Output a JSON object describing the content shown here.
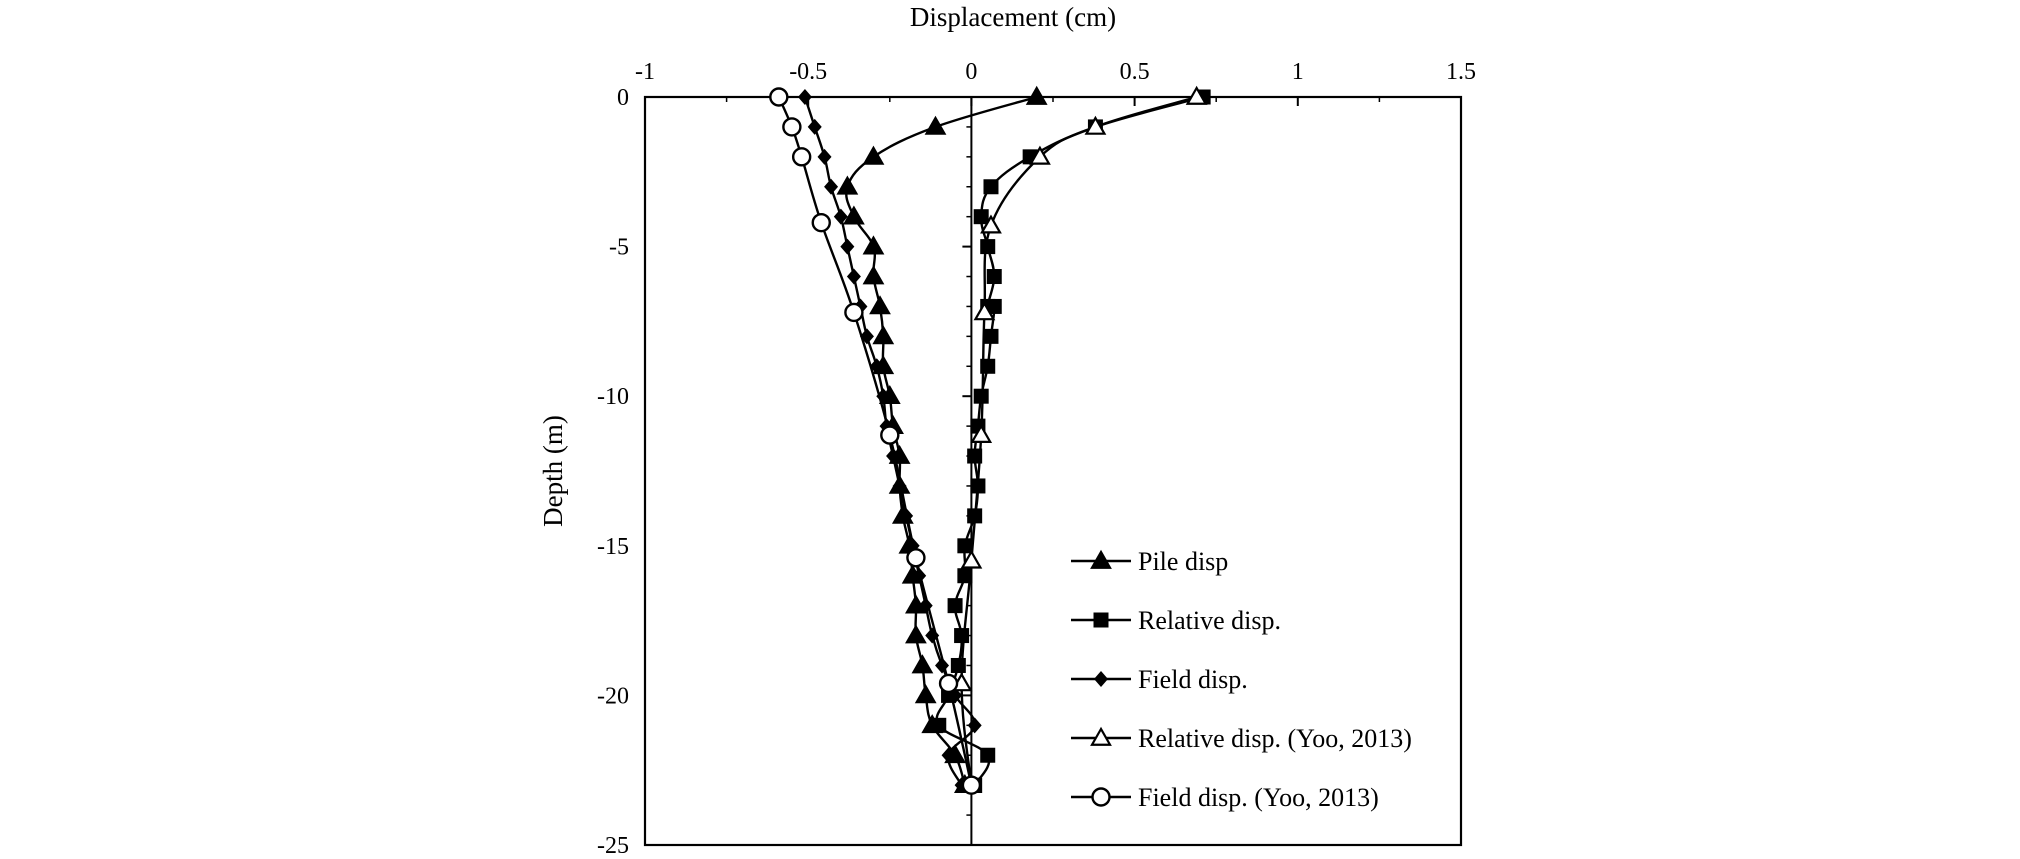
{
  "chart_data": {
    "type": "line",
    "title": "",
    "xlabel": "Displacement (cm)",
    "ylabel": "Depth (m)",
    "xlim": [
      -1,
      1.5
    ],
    "ylim": [
      -25,
      0
    ],
    "x_axis_position": "top",
    "x_ticks": [
      -1,
      -0.5,
      0,
      0.5,
      1,
      1.5
    ],
    "x_tick_labels": [
      "-1",
      "-0.5",
      "0",
      "0.5",
      "1",
      "1.5"
    ],
    "y_ticks": [
      0,
      -5,
      -10,
      -15,
      -20,
      -25
    ],
    "y_tick_labels": [
      "0",
      "-5",
      "-10",
      "-15",
      "-20",
      "-25"
    ],
    "grid": false,
    "legend_position": "bottom-right",
    "series": [
      {
        "name": "Pile disp",
        "marker": "triangle-filled",
        "points": [
          [
            0.2,
            0
          ],
          [
            -0.11,
            -1
          ],
          [
            -0.3,
            -2
          ],
          [
            -0.38,
            -3
          ],
          [
            -0.36,
            -4
          ],
          [
            -0.3,
            -5
          ],
          [
            -0.3,
            -6
          ],
          [
            -0.28,
            -7
          ],
          [
            -0.27,
            -8
          ],
          [
            -0.27,
            -9
          ],
          [
            -0.25,
            -10
          ],
          [
            -0.24,
            -11
          ],
          [
            -0.22,
            -12
          ],
          [
            -0.22,
            -13
          ],
          [
            -0.21,
            -14
          ],
          [
            -0.19,
            -15
          ],
          [
            -0.18,
            -16
          ],
          [
            -0.17,
            -17
          ],
          [
            -0.17,
            -18
          ],
          [
            -0.15,
            -19
          ],
          [
            -0.14,
            -20
          ],
          [
            -0.12,
            -21
          ],
          [
            -0.05,
            -22
          ],
          [
            -0.02,
            -23
          ]
        ]
      },
      {
        "name": "Relative disp.",
        "marker": "square-filled",
        "points": [
          [
            0.71,
            0
          ],
          [
            0.38,
            -1
          ],
          [
            0.18,
            -2
          ],
          [
            0.06,
            -3
          ],
          [
            0.03,
            -4
          ],
          [
            0.05,
            -5
          ],
          [
            0.07,
            -6
          ],
          [
            0.05,
            -7
          ],
          [
            0.07,
            -7
          ],
          [
            0.06,
            -8
          ],
          [
            0.05,
            -9
          ],
          [
            0.03,
            -10
          ],
          [
            0.02,
            -11
          ],
          [
            0.01,
            -12
          ],
          [
            0.02,
            -13
          ],
          [
            0.01,
            -14
          ],
          [
            -0.02,
            -15
          ],
          [
            -0.02,
            -16
          ],
          [
            -0.05,
            -17
          ],
          [
            -0.03,
            -18
          ],
          [
            -0.04,
            -19
          ],
          [
            -0.07,
            -20
          ],
          [
            -0.1,
            -21
          ],
          [
            0.05,
            -22
          ],
          [
            0.01,
            -23
          ]
        ]
      },
      {
        "name": "Field disp.",
        "marker": "diamond-filled",
        "points": [
          [
            -0.51,
            0
          ],
          [
            -0.48,
            -1
          ],
          [
            -0.45,
            -2
          ],
          [
            -0.43,
            -3
          ],
          [
            -0.4,
            -4
          ],
          [
            -0.38,
            -5
          ],
          [
            -0.36,
            -6
          ],
          [
            -0.34,
            -7
          ],
          [
            -0.32,
            -8
          ],
          [
            -0.29,
            -9
          ],
          [
            -0.27,
            -10
          ],
          [
            -0.26,
            -11
          ],
          [
            -0.24,
            -12
          ],
          [
            -0.22,
            -13
          ],
          [
            -0.2,
            -14
          ],
          [
            -0.18,
            -15
          ],
          [
            -0.16,
            -16
          ],
          [
            -0.14,
            -17
          ],
          [
            -0.12,
            -18
          ],
          [
            -0.09,
            -19
          ],
          [
            -0.05,
            -20
          ],
          [
            0.01,
            -21
          ],
          [
            -0.07,
            -22
          ],
          [
            -0.03,
            -23
          ]
        ]
      },
      {
        "name": "Relative disp. (Yoo, 2013)",
        "marker": "triangle-open",
        "points": [
          [
            0.69,
            0
          ],
          [
            0.38,
            -1
          ],
          [
            0.21,
            -2
          ],
          [
            0.06,
            -4.3
          ],
          [
            0.04,
            -7.2
          ],
          [
            0.03,
            -11.3
          ],
          [
            0.0,
            -15.5
          ],
          [
            -0.03,
            -19.6
          ],
          [
            0.0,
            -23
          ]
        ]
      },
      {
        "name": "Field disp. (Yoo, 2013)",
        "marker": "circle-open",
        "points": [
          [
            -0.59,
            0
          ],
          [
            -0.55,
            -1
          ],
          [
            -0.52,
            -2
          ],
          [
            -0.46,
            -4.2
          ],
          [
            -0.36,
            -7.2
          ],
          [
            -0.25,
            -11.3
          ],
          [
            -0.17,
            -15.4
          ],
          [
            -0.07,
            -19.6
          ],
          [
            0.0,
            -23
          ]
        ]
      }
    ]
  }
}
